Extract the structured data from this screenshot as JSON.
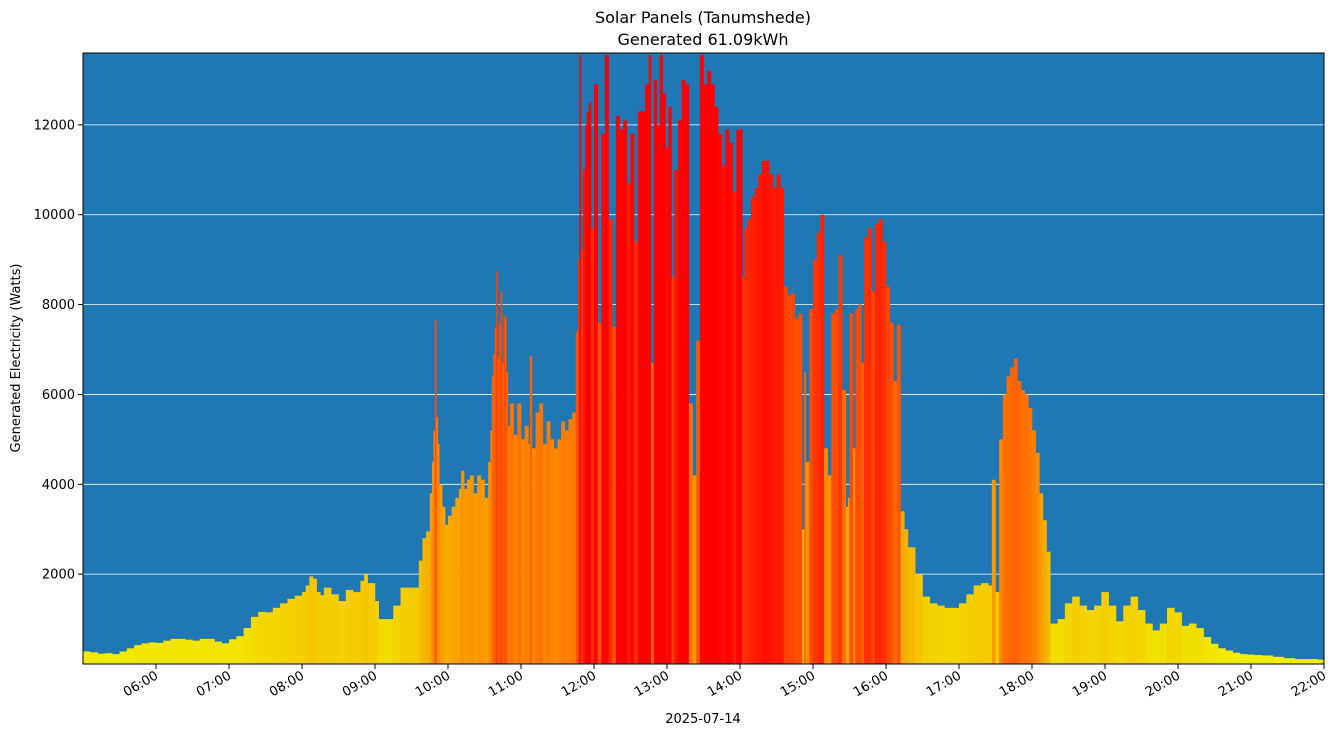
{
  "chart_data": {
    "type": "bar",
    "title": "Solar Panels (Tanumshede)",
    "subtitle": "Generated 61.09kWh",
    "xlabel": "2025-07-14",
    "ylabel": "Generated Electricity (Watts)",
    "xlim_hours": [
      5.0,
      22.0
    ],
    "ylim": [
      0,
      13600
    ],
    "grid": "horizontal",
    "colors": {
      "plot_background": "#1f77b4",
      "grid": "#ffffff",
      "low": "#f0f000",
      "mid": "#ff7000",
      "high": "#ff0000"
    },
    "y_ticks": [
      2000,
      4000,
      6000,
      8000,
      10000,
      12000
    ],
    "y_tick_labels": [
      "2000",
      "4000",
      "6000",
      "8000",
      "10000",
      "12000"
    ],
    "x_ticks": [
      6,
      7,
      8,
      9,
      10,
      11,
      12,
      13,
      14,
      15,
      16,
      17,
      18,
      19,
      20,
      21,
      22
    ],
    "x_tick_labels": [
      "06:00",
      "07:00",
      "08:00",
      "09:00",
      "10:00",
      "11:00",
      "12:00",
      "13:00",
      "14:00",
      "15:00",
      "16:00",
      "17:00",
      "18:00",
      "19:00",
      "20:00",
      "21:00",
      "22:00"
    ],
    "points": [
      [
        5.0,
        280
      ],
      [
        5.1,
        260
      ],
      [
        5.2,
        230
      ],
      [
        5.3,
        240
      ],
      [
        5.4,
        220
      ],
      [
        5.5,
        280
      ],
      [
        5.6,
        350
      ],
      [
        5.7,
        420
      ],
      [
        5.8,
        460
      ],
      [
        5.9,
        480
      ],
      [
        6.0,
        470
      ],
      [
        6.1,
        520
      ],
      [
        6.2,
        560
      ],
      [
        6.3,
        560
      ],
      [
        6.4,
        540
      ],
      [
        6.5,
        520
      ],
      [
        6.6,
        560
      ],
      [
        6.7,
        560
      ],
      [
        6.8,
        500
      ],
      [
        6.9,
        460
      ],
      [
        7.0,
        550
      ],
      [
        7.1,
        620
      ],
      [
        7.2,
        800
      ],
      [
        7.3,
        1050
      ],
      [
        7.4,
        1160
      ],
      [
        7.5,
        1150
      ],
      [
        7.6,
        1250
      ],
      [
        7.7,
        1350
      ],
      [
        7.8,
        1450
      ],
      [
        7.9,
        1520
      ],
      [
        8.0,
        1600
      ],
      [
        8.05,
        1750
      ],
      [
        8.1,
        1950
      ],
      [
        8.15,
        1900
      ],
      [
        8.2,
        1600
      ],
      [
        8.25,
        1530
      ],
      [
        8.3,
        1700
      ],
      [
        8.4,
        1550
      ],
      [
        8.5,
        1400
      ],
      [
        8.6,
        1650
      ],
      [
        8.7,
        1600
      ],
      [
        8.8,
        1850
      ],
      [
        8.85,
        2000
      ],
      [
        8.9,
        1800
      ],
      [
        9.0,
        1400
      ],
      [
        9.05,
        1000
      ],
      [
        9.15,
        1000
      ],
      [
        9.25,
        1300
      ],
      [
        9.35,
        1700
      ],
      [
        9.45,
        1700
      ],
      [
        9.55,
        1700
      ],
      [
        9.6,
        2300
      ],
      [
        9.65,
        2800
      ],
      [
        9.7,
        2950
      ],
      [
        9.75,
        3800
      ],
      [
        9.78,
        4500
      ],
      [
        9.8,
        5200
      ],
      [
        9.82,
        7650
      ],
      [
        9.84,
        5500
      ],
      [
        9.86,
        4900
      ],
      [
        9.88,
        4000
      ],
      [
        9.92,
        3500
      ],
      [
        9.96,
        3100
      ],
      [
        10.0,
        3300
      ],
      [
        10.05,
        3500
      ],
      [
        10.1,
        3700
      ],
      [
        10.15,
        3900
      ],
      [
        10.18,
        4300
      ],
      [
        10.22,
        3900
      ],
      [
        10.26,
        4100
      ],
      [
        10.3,
        4200
      ],
      [
        10.35,
        3800
      ],
      [
        10.4,
        4200
      ],
      [
        10.45,
        4100
      ],
      [
        10.5,
        3700
      ],
      [
        10.55,
        4500
      ],
      [
        10.58,
        5200
      ],
      [
        10.6,
        6400
      ],
      [
        10.62,
        6900
      ],
      [
        10.64,
        7500
      ],
      [
        10.66,
        8750
      ],
      [
        10.68,
        6800
      ],
      [
        10.7,
        7600
      ],
      [
        10.72,
        8300
      ],
      [
        10.74,
        6700
      ],
      [
        10.76,
        7700
      ],
      [
        10.78,
        7750
      ],
      [
        10.8,
        6500
      ],
      [
        10.82,
        5300
      ],
      [
        10.85,
        5800
      ],
      [
        10.9,
        5100
      ],
      [
        10.95,
        5800
      ],
      [
        11.0,
        5000
      ],
      [
        11.05,
        5300
      ],
      [
        11.1,
        4900
      ],
      [
        11.12,
        6850
      ],
      [
        11.15,
        4800
      ],
      [
        11.2,
        5600
      ],
      [
        11.25,
        5800
      ],
      [
        11.3,
        4900
      ],
      [
        11.35,
        5400
      ],
      [
        11.4,
        5000
      ],
      [
        11.45,
        4800
      ],
      [
        11.5,
        5000
      ],
      [
        11.55,
        5400
      ],
      [
        11.6,
        5200
      ],
      [
        11.65,
        5450
      ],
      [
        11.7,
        5600
      ],
      [
        11.75,
        7400
      ],
      [
        11.78,
        9000
      ],
      [
        11.8,
        13550
      ],
      [
        11.82,
        9200
      ],
      [
        11.85,
        11000
      ],
      [
        11.88,
        12000
      ],
      [
        11.9,
        12300
      ],
      [
        11.93,
        12500
      ],
      [
        11.96,
        9700
      ],
      [
        12.0,
        12900
      ],
      [
        12.05,
        7600
      ],
      [
        12.1,
        11800
      ],
      [
        12.15,
        13550
      ],
      [
        12.2,
        9900
      ],
      [
        12.25,
        7500
      ],
      [
        12.3,
        12200
      ],
      [
        12.35,
        11900
      ],
      [
        12.4,
        12100
      ],
      [
        12.45,
        10700
      ],
      [
        12.5,
        11800
      ],
      [
        12.55,
        9400
      ],
      [
        12.6,
        12300
      ],
      [
        12.65,
        12300
      ],
      [
        12.7,
        12900
      ],
      [
        12.75,
        13550
      ],
      [
        12.78,
        6700
      ],
      [
        12.82,
        13000
      ],
      [
        12.86,
        12000
      ],
      [
        12.9,
        13550
      ],
      [
        12.94,
        12700
      ],
      [
        12.98,
        11500
      ],
      [
        13.02,
        12400
      ],
      [
        13.06,
        8600
      ],
      [
        13.1,
        11000
      ],
      [
        13.15,
        12100
      ],
      [
        13.2,
        13000
      ],
      [
        13.25,
        12900
      ],
      [
        13.3,
        5800
      ],
      [
        13.35,
        4200
      ],
      [
        13.4,
        7200
      ],
      [
        13.45,
        13550
      ],
      [
        13.5,
        12900
      ],
      [
        13.55,
        13200
      ],
      [
        13.6,
        12900
      ],
      [
        13.65,
        12400
      ],
      [
        13.7,
        11800
      ],
      [
        13.75,
        11100
      ],
      [
        13.8,
        11900
      ],
      [
        13.85,
        11600
      ],
      [
        13.9,
        10500
      ],
      [
        13.95,
        11900
      ],
      [
        14.0,
        11900
      ],
      [
        14.03,
        8600
      ],
      [
        14.06,
        9700
      ],
      [
        14.1,
        9900
      ],
      [
        14.15,
        10400
      ],
      [
        14.2,
        10600
      ],
      [
        14.25,
        10900
      ],
      [
        14.3,
        11200
      ],
      [
        14.35,
        11200
      ],
      [
        14.4,
        10900
      ],
      [
        14.45,
        10600
      ],
      [
        14.5,
        10900
      ],
      [
        14.55,
        10600
      ],
      [
        14.6,
        8400
      ],
      [
        14.65,
        8200
      ],
      [
        14.7,
        8250
      ],
      [
        14.75,
        7700
      ],
      [
        14.8,
        7800
      ],
      [
        14.85,
        3000
      ],
      [
        14.88,
        6500
      ],
      [
        14.9,
        4500
      ],
      [
        14.95,
        7900
      ],
      [
        15.0,
        9000
      ],
      [
        15.05,
        9600
      ],
      [
        15.1,
        10000
      ],
      [
        15.15,
        4800
      ],
      [
        15.2,
        4200
      ],
      [
        15.25,
        7800
      ],
      [
        15.3,
        7900
      ],
      [
        15.35,
        9100
      ],
      [
        15.4,
        6100
      ],
      [
        15.45,
        3500
      ],
      [
        15.48,
        3700
      ],
      [
        15.5,
        7800
      ],
      [
        15.55,
        4800
      ],
      [
        15.58,
        7900
      ],
      [
        15.62,
        8000
      ],
      [
        15.66,
        6700
      ],
      [
        15.7,
        9500
      ],
      [
        15.75,
        9700
      ],
      [
        15.8,
        8300
      ],
      [
        15.85,
        9800
      ],
      [
        15.9,
        9900
      ],
      [
        15.95,
        9400
      ],
      [
        16.0,
        8400
      ],
      [
        16.05,
        7600
      ],
      [
        16.1,
        6300
      ],
      [
        16.15,
        7550
      ],
      [
        16.2,
        3400
      ],
      [
        16.25,
        3000
      ],
      [
        16.3,
        2600
      ],
      [
        16.4,
        2000
      ],
      [
        16.5,
        1500
      ],
      [
        16.6,
        1350
      ],
      [
        16.7,
        1300
      ],
      [
        16.8,
        1250
      ],
      [
        16.9,
        1250
      ],
      [
        17.0,
        1350
      ],
      [
        17.1,
        1550
      ],
      [
        17.2,
        1750
      ],
      [
        17.3,
        1800
      ],
      [
        17.4,
        1750
      ],
      [
        17.45,
        4100
      ],
      [
        17.5,
        1600
      ],
      [
        17.55,
        5000
      ],
      [
        17.6,
        6000
      ],
      [
        17.65,
        6400
      ],
      [
        17.7,
        6600
      ],
      [
        17.75,
        6800
      ],
      [
        17.8,
        6300
      ],
      [
        17.85,
        6100
      ],
      [
        17.9,
        6000
      ],
      [
        17.95,
        5700
      ],
      [
        18.0,
        5200
      ],
      [
        18.05,
        4700
      ],
      [
        18.1,
        3800
      ],
      [
        18.15,
        3200
      ],
      [
        18.2,
        2500
      ],
      [
        18.25,
        900
      ],
      [
        18.35,
        1000
      ],
      [
        18.45,
        1350
      ],
      [
        18.55,
        1500
      ],
      [
        18.65,
        1300
      ],
      [
        18.75,
        1200
      ],
      [
        18.85,
        1300
      ],
      [
        18.95,
        1600
      ],
      [
        19.05,
        1300
      ],
      [
        19.15,
        950
      ],
      [
        19.25,
        1300
      ],
      [
        19.35,
        1500
      ],
      [
        19.45,
        1200
      ],
      [
        19.55,
        900
      ],
      [
        19.65,
        750
      ],
      [
        19.75,
        900
      ],
      [
        19.85,
        1250
      ],
      [
        19.95,
        1150
      ],
      [
        20.05,
        850
      ],
      [
        20.15,
        900
      ],
      [
        20.25,
        800
      ],
      [
        20.35,
        600
      ],
      [
        20.45,
        450
      ],
      [
        20.55,
        350
      ],
      [
        20.65,
        300
      ],
      [
        20.75,
        250
      ],
      [
        20.85,
        220
      ],
      [
        20.95,
        210
      ],
      [
        21.05,
        200
      ],
      [
        21.15,
        190
      ],
      [
        21.3,
        160
      ],
      [
        21.45,
        130
      ],
      [
        21.6,
        110
      ],
      [
        21.75,
        110
      ],
      [
        21.9,
        100
      ],
      [
        21.98,
        90
      ]
    ]
  }
}
